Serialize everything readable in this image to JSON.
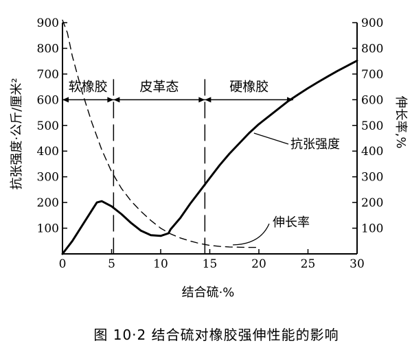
{
  "chart_data": {
    "type": "line",
    "x": {
      "label": "结合硫·%",
      "range": [
        0,
        30
      ],
      "ticks": [
        0,
        5,
        10,
        15,
        20,
        25,
        30
      ]
    },
    "y_left": {
      "label": "抗张强度·公斤/厘米²",
      "range": [
        0,
        900
      ],
      "ticks": [
        100,
        200,
        300,
        400,
        500,
        600,
        700,
        800,
        900
      ]
    },
    "y_right": {
      "label": "伸长率,%",
      "range": [
        0,
        900
      ],
      "ticks": [
        100,
        200,
        300,
        400,
        500,
        600,
        700,
        800,
        900
      ]
    },
    "regions": [
      {
        "label": "软橡胶",
        "from": 0,
        "to": 5.2
      },
      {
        "label": "皮革态",
        "from": 5.2,
        "to": 14.5
      },
      {
        "label": "硬橡胶",
        "from": 14.5,
        "to": 23.5
      }
    ],
    "region_bracket_y": 600,
    "boundaries": [
      5.2,
      14.5
    ],
    "series": [
      {
        "name": "抗张强度",
        "style": "solid",
        "points": [
          [
            0,
            0
          ],
          [
            1,
            50
          ],
          [
            2,
            110
          ],
          [
            3,
            170
          ],
          [
            3.5,
            200
          ],
          [
            4,
            205
          ],
          [
            5,
            185
          ],
          [
            6,
            155
          ],
          [
            7,
            120
          ],
          [
            8,
            90
          ],
          [
            9,
            73
          ],
          [
            10,
            70
          ],
          [
            10.8,
            80
          ],
          [
            11,
            95
          ],
          [
            12,
            140
          ],
          [
            13,
            195
          ],
          [
            14,
            245
          ],
          [
            15,
            295
          ],
          [
            16,
            345
          ],
          [
            17,
            390
          ],
          [
            18,
            430
          ],
          [
            19,
            470
          ],
          [
            20,
            505
          ],
          [
            21,
            535
          ],
          [
            22,
            565
          ],
          [
            23,
            595
          ],
          [
            24,
            620
          ],
          [
            25,
            645
          ],
          [
            26,
            668
          ],
          [
            27,
            690
          ],
          [
            28,
            712
          ],
          [
            29,
            732
          ],
          [
            30,
            752
          ]
        ]
      },
      {
        "name": "伸长率",
        "style": "dashed",
        "points": [
          [
            0,
            910
          ],
          [
            0.5,
            860
          ],
          [
            1,
            770
          ],
          [
            2,
            630
          ],
          [
            3,
            510
          ],
          [
            4,
            405
          ],
          [
            5,
            320
          ],
          [
            6,
            255
          ],
          [
            7,
            205
          ],
          [
            8,
            165
          ],
          [
            9,
            130
          ],
          [
            10,
            100
          ],
          [
            11,
            78
          ],
          [
            12,
            62
          ],
          [
            13,
            50
          ],
          [
            14,
            40
          ],
          [
            15,
            33
          ],
          [
            16,
            29
          ],
          [
            17,
            27
          ],
          [
            18,
            26
          ],
          [
            19,
            25
          ],
          [
            20,
            25
          ]
        ]
      }
    ],
    "annotations": [
      {
        "text": "抗张强度",
        "target": [
          19.5,
          470
        ]
      },
      {
        "text": "伸长率",
        "target": [
          17,
          27
        ]
      }
    ]
  },
  "caption": "图 10·2   结合硫对橡胶强伸性能的影响"
}
